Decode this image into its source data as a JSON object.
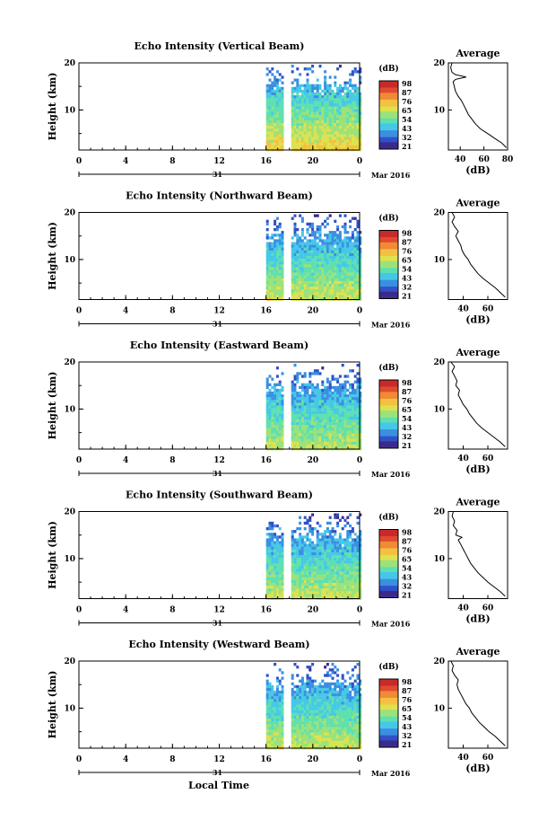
{
  "colors": {
    "palette": [
      "#3a2a8c",
      "#3050c8",
      "#3b8fe0",
      "#45c8e8",
      "#5ee0b0",
      "#9be27a",
      "#dde24f",
      "#f5c040",
      "#f08a35",
      "#e04a30",
      "#c82a2a"
    ]
  },
  "chart_data": [
    {
      "type": "heatmap",
      "title": "Echo Intensity (Vertical Beam)",
      "ylabel": "Height (km)",
      "x_ticks": [
        "0",
        "4",
        "8",
        "12",
        "16",
        "20",
        "0"
      ],
      "y_ticks": [
        "20",
        "10"
      ],
      "xlim_hours": [
        0,
        24
      ],
      "ylim_km": [
        1.5,
        20
      ],
      "date_day": "31",
      "date_month": "Mar 2016",
      "colorbar_label": "(dB)",
      "colorbar_ticks": [
        "98",
        "87",
        "76",
        "65",
        "54",
        "43",
        "32",
        "21"
      ],
      "data_coverage_hours": [
        16,
        24
      ],
      "intensity_surface_db": 72,
      "intensity_top_db": 32,
      "profile": {
        "title": "Average",
        "xlabel": "(dB)",
        "x_ticks": [
          "40",
          "60",
          "80"
        ],
        "y_ticks": [
          "20",
          "10"
        ],
        "xlim": [
          30,
          80
        ],
        "points": [
          [
            79,
            2
          ],
          [
            75,
            3
          ],
          [
            69,
            4
          ],
          [
            63,
            5
          ],
          [
            57,
            6
          ],
          [
            53,
            7
          ],
          [
            50,
            8
          ],
          [
            47,
            9
          ],
          [
            45,
            10
          ],
          [
            43,
            11
          ],
          [
            41,
            12
          ],
          [
            38,
            13
          ],
          [
            36,
            14
          ],
          [
            35,
            15
          ],
          [
            34,
            16
          ],
          [
            36,
            16.5
          ],
          [
            45,
            17
          ],
          [
            36,
            17.5
          ],
          [
            33,
            18
          ],
          [
            32,
            19
          ],
          [
            33,
            20
          ]
        ]
      }
    },
    {
      "type": "heatmap",
      "title": "Echo Intensity (Northward Beam)",
      "ylabel": "Height (km)",
      "x_ticks": [
        "0",
        "4",
        "8",
        "12",
        "16",
        "20",
        "0"
      ],
      "y_ticks": [
        "20",
        "10"
      ],
      "xlim_hours": [
        0,
        24
      ],
      "ylim_km": [
        1.5,
        20
      ],
      "date_day": "31",
      "date_month": "Mar 2016",
      "colorbar_label": "(dB)",
      "colorbar_ticks": [
        "98",
        "87",
        "76",
        "65",
        "54",
        "43",
        "32",
        "21"
      ],
      "data_coverage_hours": [
        16,
        24
      ],
      "intensity_surface_db": 66,
      "intensity_top_db": 30,
      "profile": {
        "title": "Average",
        "xlabel": "(dB)",
        "x_ticks": [
          "40",
          "60"
        ],
        "y_ticks": [
          "20",
          "10"
        ],
        "xlim": [
          28,
          76
        ],
        "points": [
          [
            74,
            2
          ],
          [
            70,
            3
          ],
          [
            66,
            4
          ],
          [
            61,
            5
          ],
          [
            56,
            6
          ],
          [
            52,
            7
          ],
          [
            49,
            8
          ],
          [
            46,
            9
          ],
          [
            44,
            10
          ],
          [
            41,
            11
          ],
          [
            39,
            12
          ],
          [
            38,
            13
          ],
          [
            36,
            14
          ],
          [
            34,
            15
          ],
          [
            36,
            16
          ],
          [
            33,
            17
          ],
          [
            31,
            18
          ],
          [
            33,
            19
          ],
          [
            31,
            20
          ]
        ]
      }
    },
    {
      "type": "heatmap",
      "title": "Echo Intensity (Eastward Beam)",
      "ylabel": "Height (km)",
      "x_ticks": [
        "0",
        "4",
        "8",
        "12",
        "16",
        "20",
        "0"
      ],
      "y_ticks": [
        "20",
        "10"
      ],
      "xlim_hours": [
        0,
        24
      ],
      "ylim_km": [
        1.5,
        20
      ],
      "date_day": "31",
      "date_month": "Mar 2016",
      "colorbar_label": "(dB)",
      "colorbar_ticks": [
        "98",
        "87",
        "76",
        "65",
        "54",
        "43",
        "32",
        "21"
      ],
      "data_coverage_hours": [
        16,
        24
      ],
      "intensity_surface_db": 64,
      "intensity_top_db": 30,
      "profile": {
        "title": "Average",
        "xlabel": "(dB)",
        "x_ticks": [
          "40",
          "60"
        ],
        "y_ticks": [
          "20",
          "10"
        ],
        "xlim": [
          28,
          76
        ],
        "points": [
          [
            74,
            2
          ],
          [
            70,
            3
          ],
          [
            65,
            4
          ],
          [
            60,
            5
          ],
          [
            55,
            6
          ],
          [
            51,
            7
          ],
          [
            48,
            8
          ],
          [
            45,
            9
          ],
          [
            43,
            10
          ],
          [
            40,
            11
          ],
          [
            38,
            12
          ],
          [
            36,
            13
          ],
          [
            37,
            14
          ],
          [
            34,
            15
          ],
          [
            35,
            16
          ],
          [
            33,
            17
          ],
          [
            31,
            18
          ],
          [
            33,
            19
          ],
          [
            30,
            20
          ]
        ]
      }
    },
    {
      "type": "heatmap",
      "title": "Echo Intensity (Southward Beam)",
      "ylabel": "Height (km)",
      "x_ticks": [
        "0",
        "4",
        "8",
        "12",
        "16",
        "20",
        "0"
      ],
      "y_ticks": [
        "20",
        "10"
      ],
      "xlim_hours": [
        0,
        24
      ],
      "ylim_km": [
        1.5,
        20
      ],
      "date_day": "31",
      "date_month": "Mar 2016",
      "colorbar_label": "(dB)",
      "colorbar_ticks": [
        "98",
        "87",
        "76",
        "65",
        "54",
        "43",
        "32",
        "21"
      ],
      "data_coverage_hours": [
        16,
        24
      ],
      "intensity_surface_db": 65,
      "intensity_top_db": 30,
      "profile": {
        "title": "Average",
        "xlabel": "(dB)",
        "x_ticks": [
          "40",
          "60"
        ],
        "y_ticks": [
          "20",
          "10"
        ],
        "xlim": [
          28,
          76
        ],
        "points": [
          [
            74,
            2
          ],
          [
            70,
            3
          ],
          [
            65,
            4
          ],
          [
            60,
            5
          ],
          [
            56,
            6
          ],
          [
            52,
            7
          ],
          [
            49,
            8
          ],
          [
            46,
            9
          ],
          [
            44,
            10
          ],
          [
            42,
            11
          ],
          [
            40,
            12
          ],
          [
            38,
            13
          ],
          [
            36,
            14
          ],
          [
            39,
            14.5
          ],
          [
            34,
            15
          ],
          [
            35,
            16
          ],
          [
            32,
            17
          ],
          [
            33,
            18
          ],
          [
            31,
            19
          ],
          [
            32,
            20
          ]
        ]
      }
    },
    {
      "type": "heatmap",
      "title": "Echo Intensity (Westward Beam)",
      "ylabel": "Height (km)",
      "x_ticks": [
        "0",
        "4",
        "8",
        "12",
        "16",
        "20",
        "0"
      ],
      "y_ticks": [
        "20",
        "10"
      ],
      "xlim_hours": [
        0,
        24
      ],
      "ylim_km": [
        1.5,
        20
      ],
      "date_day": "31",
      "date_month": "Mar 2016",
      "colorbar_label": "(dB)",
      "colorbar_ticks": [
        "98",
        "87",
        "76",
        "65",
        "54",
        "43",
        "32",
        "21"
      ],
      "data_coverage_hours": [
        16,
        24
      ],
      "intensity_surface_db": 66,
      "intensity_top_db": 30,
      "profile": {
        "title": "Average",
        "xlabel": "(dB)",
        "x_ticks": [
          "40",
          "60"
        ],
        "y_ticks": [
          "20",
          "10"
        ],
        "xlim": [
          28,
          76
        ],
        "points": [
          [
            74,
            2
          ],
          [
            70,
            3
          ],
          [
            66,
            4
          ],
          [
            61,
            5
          ],
          [
            57,
            6
          ],
          [
            53,
            7
          ],
          [
            50,
            8
          ],
          [
            47,
            9
          ],
          [
            45,
            10
          ],
          [
            42,
            11
          ],
          [
            40,
            12
          ],
          [
            38,
            13
          ],
          [
            36,
            14
          ],
          [
            35,
            15
          ],
          [
            36,
            16
          ],
          [
            33,
            17
          ],
          [
            31,
            18
          ],
          [
            32,
            19
          ],
          [
            30,
            20
          ]
        ]
      }
    }
  ],
  "footer": {
    "xlabel": "Local Time"
  }
}
